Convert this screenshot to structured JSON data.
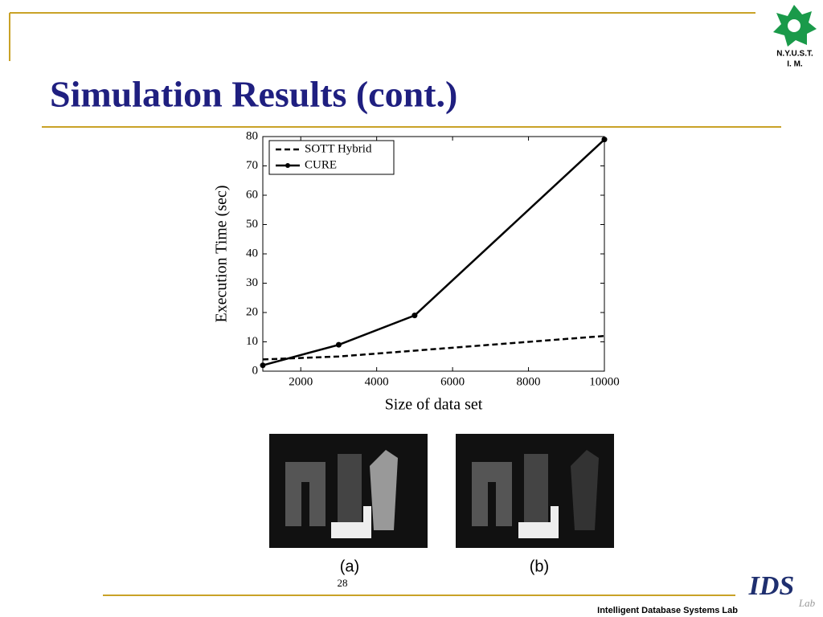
{
  "slide": {
    "title": "Simulation Results (cont.)",
    "logo_top": "N.Y.U.S.T.",
    "logo_bottom": "I. M.",
    "page_number": "28",
    "footer": "Intelligent Database Systems Lab",
    "lab_logo": "IDS",
    "lab_logo_sub": "Lab",
    "image_a_label": "(a)",
    "image_b_label": "(b)"
  },
  "chart_data": {
    "type": "line",
    "x_label": "Size of data set",
    "y_label": "Execution Time (sec)",
    "xlim": [
      1000,
      10000
    ],
    "xticks": [
      2000,
      4000,
      6000,
      8000,
      10000
    ],
    "ylim": [
      0,
      80
    ],
    "yticks": [
      0,
      10,
      20,
      30,
      40,
      50,
      60,
      70,
      80
    ],
    "legend": "upper-left",
    "series": [
      {
        "name": "SOTT Hybrid",
        "color": "#000000",
        "line_style": "dashed",
        "markers": false,
        "x": [
          1000,
          3000,
          5000,
          10000
        ],
        "values": [
          4,
          5,
          7,
          12
        ]
      },
      {
        "name": "CURE",
        "color": "#000000",
        "line_style": "solid",
        "markers": true,
        "x": [
          1000,
          3000,
          5000,
          10000
        ],
        "values": [
          2,
          9,
          19,
          79
        ]
      }
    ]
  }
}
